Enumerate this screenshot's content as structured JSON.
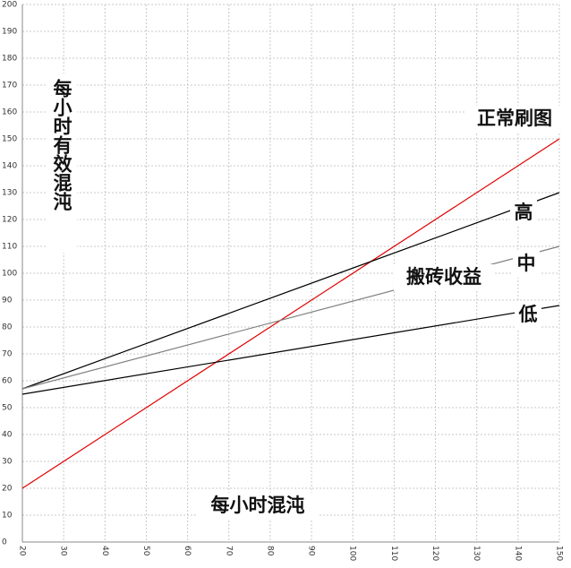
{
  "chart_data": {
    "type": "line",
    "x_label": "每小时混沌",
    "y_label": "每小时有效混沌",
    "annotation": "搬砖收益",
    "x": [
      20,
      150
    ],
    "series": [
      {
        "name": "正常刷图",
        "color": "#e00000",
        "values": [
          20,
          150
        ]
      },
      {
        "name": "高",
        "color": "#000000",
        "values": [
          57,
          130
        ]
      },
      {
        "name": "中",
        "color": "#808080",
        "values": [
          57,
          110
        ]
      },
      {
        "name": "低",
        "color": "#000000",
        "values": [
          55,
          88
        ]
      }
    ],
    "xlim": [
      20,
      150
    ],
    "xticks": [
      20,
      30,
      40,
      50,
      60,
      70,
      80,
      90,
      100,
      110,
      120,
      130,
      140,
      150
    ],
    "ylim": [
      0,
      200
    ],
    "yticks": [
      0,
      10,
      20,
      30,
      40,
      50,
      60,
      70,
      80,
      90,
      100,
      110,
      120,
      130,
      140,
      150,
      160,
      170,
      180,
      190,
      200
    ],
    "grid": true
  }
}
